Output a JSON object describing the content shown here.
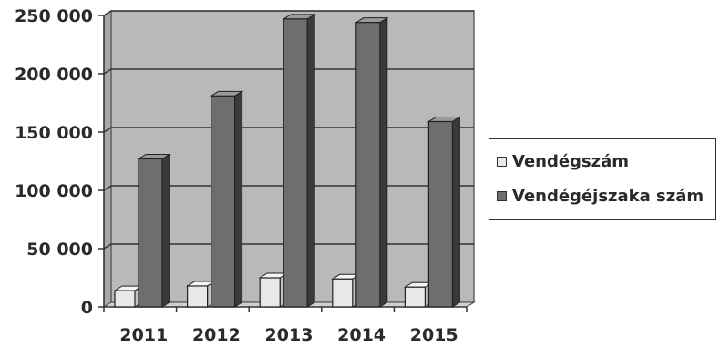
{
  "chart_data": {
    "type": "bar",
    "categories": [
      "2011",
      "2012",
      "2013",
      "2014",
      "2015"
    ],
    "series": [
      {
        "name": "Vendégszám",
        "values": [
          14000,
          18000,
          25000,
          24000,
          17000
        ]
      },
      {
        "name": "Vendégéjszaka szám",
        "values": [
          127000,
          181000,
          247000,
          244000,
          159000
        ]
      }
    ],
    "yticks": [
      "0",
      "50 000",
      "100 000",
      "150 000",
      "200 000",
      "250 000"
    ],
    "ylim": [
      0,
      250000
    ],
    "title": "",
    "xlabel": "",
    "ylabel": "",
    "grid": true,
    "legend_position": "right",
    "colors": {
      "series1": "#e8e8e8",
      "series2": "#6e6e6e",
      "plot_background": "#b9b9b9",
      "gridline": "#333333"
    }
  }
}
